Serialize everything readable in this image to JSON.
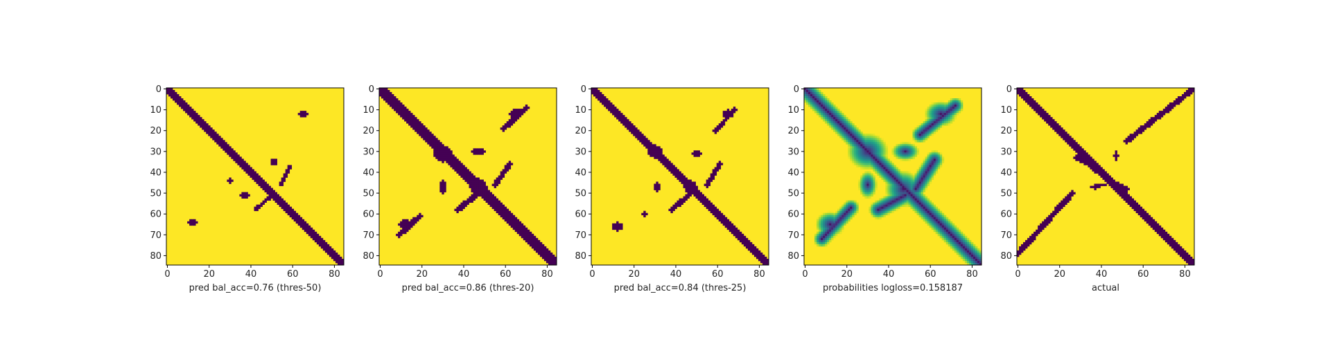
{
  "chart_data": [
    {
      "type": "heatmap",
      "xlabel": "pred bal_acc=0.76 (thres-50)",
      "x_ticks": [
        0,
        20,
        40,
        60,
        80
      ],
      "y_ticks": [
        0,
        10,
        20,
        30,
        40,
        50,
        60,
        70,
        80
      ],
      "xlim": [
        0,
        85
      ],
      "ylim": [
        85,
        0
      ],
      "colormap": "viridis",
      "colors": {
        "low": "#440154",
        "high": "#fde725"
      },
      "features": [
        {
          "kind": "band",
          "from": [
            0,
            0
          ],
          "to": [
            85,
            85
          ],
          "width": 2.0
        },
        {
          "kind": "blob",
          "center": [
            65,
            12
          ],
          "r": [
            2.2,
            1.8
          ]
        },
        {
          "kind": "blob",
          "center": [
            51,
            35
          ],
          "r": [
            1.6,
            1.4
          ]
        },
        {
          "kind": "band",
          "from": [
            54,
            46
          ],
          "to": [
            59,
            37
          ],
          "width": 0.9
        },
        {
          "kind": "blob",
          "center": [
            37,
            51
          ],
          "r": [
            2.0,
            1.2
          ]
        },
        {
          "kind": "band",
          "from": [
            42,
            58
          ],
          "to": [
            50,
            51
          ],
          "width": 0.9
        },
        {
          "kind": "blob",
          "center": [
            12,
            64
          ],
          "r": [
            2.0,
            1.6
          ]
        },
        {
          "kind": "blob",
          "center": [
            30,
            44
          ],
          "r": [
            1.0,
            1.0
          ]
        }
      ]
    },
    {
      "type": "heatmap",
      "xlabel": "pred bal_acc=0.86 (thres-20)",
      "x_ticks": [
        0,
        20,
        40,
        60,
        80
      ],
      "y_ticks": [
        0,
        10,
        20,
        30,
        40,
        50,
        60,
        70,
        80
      ],
      "xlim": [
        0,
        85
      ],
      "ylim": [
        85,
        0
      ],
      "colormap": "viridis",
      "colors": {
        "low": "#440154",
        "high": "#fde725"
      },
      "features": [
        {
          "kind": "band",
          "from": [
            0,
            0
          ],
          "to": [
            85,
            85
          ],
          "width": 2.2
        },
        {
          "kind": "blob",
          "center": [
            30,
            31
          ],
          "r": [
            4.5,
            4.0
          ]
        },
        {
          "kind": "blob",
          "center": [
            47,
            47
          ],
          "r": [
            4.0,
            4.0
          ]
        },
        {
          "kind": "blob",
          "center": [
            65,
            12
          ],
          "r": [
            3.0,
            2.2
          ]
        },
        {
          "kind": "band",
          "from": [
            59,
            19
          ],
          "to": [
            70,
            9
          ],
          "width": 1.3
        },
        {
          "kind": "band",
          "from": [
            55,
            46
          ],
          "to": [
            62,
            36
          ],
          "width": 1.2
        },
        {
          "kind": "blob",
          "center": [
            47,
            30
          ],
          "r": [
            3.0,
            1.8
          ]
        },
        {
          "kind": "blob",
          "center": [
            30,
            47
          ],
          "r": [
            1.8,
            3.0
          ]
        },
        {
          "kind": "band",
          "from": [
            37,
            58
          ],
          "to": [
            47,
            50
          ],
          "width": 1.3
        },
        {
          "kind": "blob",
          "center": [
            12,
            65
          ],
          "r": [
            3.0,
            2.5
          ]
        },
        {
          "kind": "band",
          "from": [
            9,
            70
          ],
          "to": [
            19,
            61
          ],
          "width": 1.3
        }
      ]
    },
    {
      "type": "heatmap",
      "xlabel": "pred bal_acc=0.84 (thres-25)",
      "x_ticks": [
        0,
        20,
        40,
        60,
        80
      ],
      "y_ticks": [
        0,
        10,
        20,
        30,
        40,
        50,
        60,
        70,
        80
      ],
      "xlim": [
        0,
        85
      ],
      "ylim": [
        85,
        0
      ],
      "colormap": "viridis",
      "colors": {
        "low": "#440154",
        "high": "#fde725"
      },
      "features": [
        {
          "kind": "band",
          "from": [
            0,
            0
          ],
          "to": [
            85,
            85
          ],
          "width": 2.1
        },
        {
          "kind": "blob",
          "center": [
            30,
            30
          ],
          "r": [
            3.5,
            3.0
          ]
        },
        {
          "kind": "blob",
          "center": [
            47,
            47
          ],
          "r": [
            3.0,
            3.0
          ]
        },
        {
          "kind": "blob",
          "center": [
            65,
            12
          ],
          "r": [
            2.6,
            2.0
          ]
        },
        {
          "kind": "band",
          "from": [
            59,
            20
          ],
          "to": [
            68,
            10
          ],
          "width": 1.0
        },
        {
          "kind": "band",
          "from": [
            55,
            46
          ],
          "to": [
            61,
            36
          ],
          "width": 1.2
        },
        {
          "kind": "blob",
          "center": [
            50,
            31
          ],
          "r": [
            2.0,
            1.4
          ]
        },
        {
          "kind": "blob",
          "center": [
            31,
            47
          ],
          "r": [
            1.4,
            2.2
          ]
        },
        {
          "kind": "band",
          "from": [
            38,
            58
          ],
          "to": [
            46,
            51
          ],
          "width": 1.2
        },
        {
          "kind": "blob",
          "center": [
            12,
            66
          ],
          "r": [
            2.6,
            2.0
          ]
        },
        {
          "kind": "blob",
          "center": [
            25,
            60
          ],
          "r": [
            1.8,
            1.2
          ]
        }
      ]
    },
    {
      "type": "heatmap",
      "xlabel": "probabilities logloss=0.158187",
      "x_ticks": [
        0,
        20,
        40,
        60,
        80
      ],
      "y_ticks": [
        0,
        10,
        20,
        30,
        40,
        50,
        60,
        70,
        80
      ],
      "xlim": [
        0,
        85
      ],
      "ylim": [
        85,
        0
      ],
      "colormap": "viridis",
      "colors": {
        "low": "#440154",
        "high": "#fde725"
      },
      "features": [
        {
          "kind": "band",
          "from": [
            0,
            0
          ],
          "to": [
            85,
            85
          ],
          "width": 2.2
        },
        {
          "kind": "blob",
          "center": [
            65,
            12
          ],
          "r": [
            3.5,
            2.8
          ]
        },
        {
          "kind": "band",
          "from": [
            55,
            22
          ],
          "to": [
            72,
            8
          ],
          "width": 1.8
        },
        {
          "kind": "blob",
          "center": [
            12,
            65
          ],
          "r": [
            3.2,
            2.8
          ]
        },
        {
          "kind": "band",
          "from": [
            8,
            72
          ],
          "to": [
            22,
            57
          ],
          "width": 1.8
        },
        {
          "kind": "blob",
          "center": [
            30,
            30
          ],
          "r": [
            4.5,
            4.0
          ]
        },
        {
          "kind": "blob",
          "center": [
            47,
            48
          ],
          "r": [
            4.0,
            4.0
          ]
        },
        {
          "kind": "band",
          "from": [
            53,
            48
          ],
          "to": [
            62,
            34
          ],
          "width": 2.0
        },
        {
          "kind": "band",
          "from": [
            35,
            58
          ],
          "to": [
            48,
            51
          ],
          "width": 2.0
        },
        {
          "kind": "blob",
          "center": [
            48,
            30
          ],
          "r": [
            3.0,
            2.0
          ]
        },
        {
          "kind": "blob",
          "center": [
            30,
            46
          ],
          "r": [
            2.0,
            3.0
          ]
        }
      ]
    },
    {
      "type": "heatmap",
      "xlabel": "actual",
      "x_ticks": [
        0,
        20,
        40,
        60,
        80
      ],
      "y_ticks": [
        0,
        10,
        20,
        30,
        40,
        50,
        60,
        70,
        80
      ],
      "xlim": [
        0,
        85
      ],
      "ylim": [
        85,
        0
      ],
      "colormap": "viridis",
      "colors": {
        "low": "#440154",
        "high": "#fde725"
      },
      "features": [
        {
          "kind": "band",
          "from": [
            0,
            0
          ],
          "to": [
            85,
            85
          ],
          "width": 2.0
        },
        {
          "kind": "band",
          "from": [
            52,
            25
          ],
          "to": [
            84,
            0
          ],
          "width": 1.3
        },
        {
          "kind": "band",
          "from": [
            0,
            79
          ],
          "to": [
            26,
            50
          ],
          "width": 1.3
        },
        {
          "kind": "blob",
          "center": [
            30,
            33
          ],
          "r": [
            3.0,
            2.0
          ]
        },
        {
          "kind": "blob",
          "center": [
            48,
            47
          ],
          "r": [
            3.0,
            2.0
          ]
        },
        {
          "kind": "band",
          "from": [
            30,
            33
          ],
          "to": [
            48,
            47
          ],
          "width": 1.3
        },
        {
          "kind": "blob",
          "center": [
            37,
            47
          ],
          "r": [
            2.0,
            1.0
          ]
        },
        {
          "kind": "blob",
          "center": [
            52,
            48
          ],
          "r": [
            1.5,
            1.0
          ]
        },
        {
          "kind": "blob",
          "center": [
            47,
            32
          ],
          "r": [
            1.0,
            2.0
          ]
        },
        {
          "kind": "blob",
          "center": [
            40,
            46
          ],
          "r": [
            2.0,
            0.8
          ]
        }
      ]
    }
  ]
}
